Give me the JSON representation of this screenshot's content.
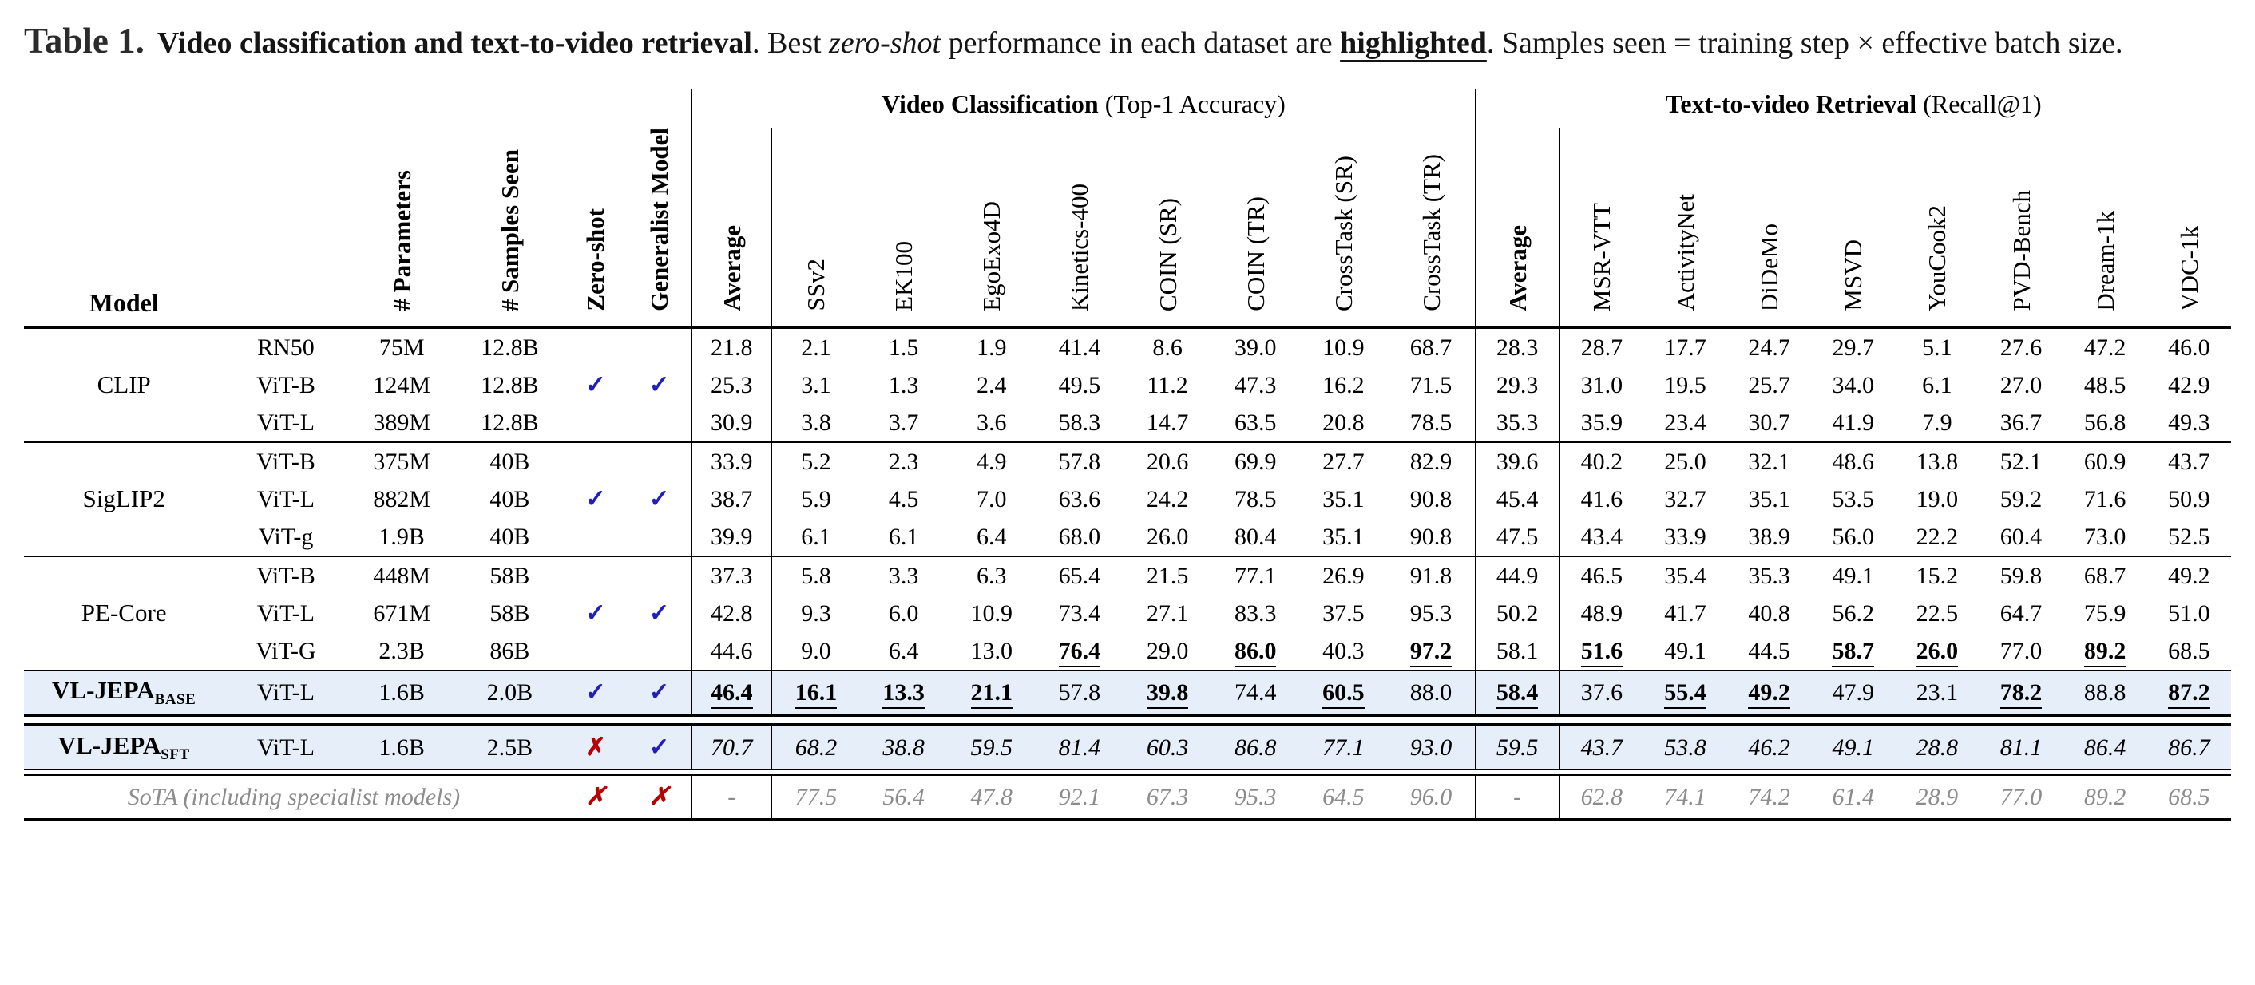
{
  "caption": {
    "label": "Table 1.",
    "bold_title": "Video classification and text-to-video retrieval",
    "after_title": ". Best ",
    "italic_word": "zero-shot",
    "mid": " performance in each dataset are ",
    "underlined_word": "highlighted",
    "tail": ". Samples seen = training step × effective batch size."
  },
  "icons": {
    "check": "✓",
    "cross": "✗"
  },
  "colors": {
    "check_blue": "#1f1fbf",
    "cross_red": "#b80000",
    "highlight_bg": "#e6eff9",
    "sota_gray": "#8c8c8c"
  },
  "table": {
    "group_headers": {
      "classification": {
        "bold": "Video Classification",
        "paren": " (Top-1 Accuracy)"
      },
      "retrieval": {
        "bold": "Text-to-video Retrieval",
        "paren": " (Recall@1)"
      }
    },
    "model_header": "Model",
    "meta_headers": [
      "# Parameters",
      "# Samples Seen",
      "Zero-shot",
      "Generalist Model"
    ],
    "classification_headers": [
      "Average",
      "SSv2",
      "EK100",
      "EgoExo4D",
      "Kinetics-400",
      "COIN (SR)",
      "COIN (TR)",
      "CrossTask (SR)",
      "CrossTask (TR)"
    ],
    "retrieval_headers": [
      "Average",
      "MSR-VTT",
      "ActivityNet",
      "DiDeMo",
      "MSVD",
      "YouCook2",
      "PVD-Bench",
      "Dream-1k",
      "VDC-1k"
    ],
    "rows": [
      {
        "model": "CLIP",
        "model_span": 3,
        "variant": "RN50",
        "params": "75M",
        "samples": "12.8B",
        "zero_shot": "",
        "generalist": "",
        "cls": [
          "21.8",
          "2.1",
          "1.5",
          "1.9",
          "41.4",
          "8.6",
          "39.0",
          "10.9",
          "68.7"
        ],
        "ret": [
          "28.3",
          "28.7",
          "17.7",
          "24.7",
          "29.7",
          "5.1",
          "27.6",
          "47.2",
          "46.0"
        ]
      },
      {
        "variant": "ViT-B",
        "params": "124M",
        "samples": "12.8B",
        "zero_shot": "check",
        "generalist": "check",
        "cls": [
          "25.3",
          "3.1",
          "1.3",
          "2.4",
          "49.5",
          "11.2",
          "47.3",
          "16.2",
          "71.5"
        ],
        "ret": [
          "29.3",
          "31.0",
          "19.5",
          "25.7",
          "34.0",
          "6.1",
          "27.0",
          "48.5",
          "42.9"
        ]
      },
      {
        "variant": "ViT-L",
        "params": "389M",
        "samples": "12.8B",
        "zero_shot": "",
        "generalist": "",
        "cls": [
          "30.9",
          "3.8",
          "3.7",
          "3.6",
          "58.3",
          "14.7",
          "63.5",
          "20.8",
          "78.5"
        ],
        "ret": [
          "35.3",
          "35.9",
          "23.4",
          "30.7",
          "41.9",
          "7.9",
          "36.7",
          "56.8",
          "49.3"
        ]
      },
      {
        "rule": "thin"
      },
      {
        "model": "SigLIP2",
        "model_span": 3,
        "variant": "ViT-B",
        "params": "375M",
        "samples": "40B",
        "zero_shot": "",
        "generalist": "",
        "cls": [
          "33.9",
          "5.2",
          "2.3",
          "4.9",
          "57.8",
          "20.6",
          "69.9",
          "27.7",
          "82.9"
        ],
        "ret": [
          "39.6",
          "40.2",
          "25.0",
          "32.1",
          "48.6",
          "13.8",
          "52.1",
          "60.9",
          "43.7"
        ]
      },
      {
        "variant": "ViT-L",
        "params": "882M",
        "samples": "40B",
        "zero_shot": "check",
        "generalist": "check",
        "cls": [
          "38.7",
          "5.9",
          "4.5",
          "7.0",
          "63.6",
          "24.2",
          "78.5",
          "35.1",
          "90.8"
        ],
        "ret": [
          "45.4",
          "41.6",
          "32.7",
          "35.1",
          "53.5",
          "19.0",
          "59.2",
          "71.6",
          "50.9"
        ]
      },
      {
        "variant": "ViT-g",
        "params": "1.9B",
        "samples": "40B",
        "zero_shot": "",
        "generalist": "",
        "cls": [
          "39.9",
          "6.1",
          "6.1",
          "6.4",
          "68.0",
          "26.0",
          "80.4",
          "35.1",
          "90.8"
        ],
        "ret": [
          "47.5",
          "43.4",
          "33.9",
          "38.9",
          "56.0",
          "22.2",
          "60.4",
          "73.0",
          "52.5"
        ]
      },
      {
        "rule": "thin"
      },
      {
        "model": "PE-Core",
        "model_span": 3,
        "variant": "ViT-B",
        "params": "448M",
        "samples": "58B",
        "zero_shot": "",
        "generalist": "",
        "cls": [
          "37.3",
          "5.8",
          "3.3",
          "6.3",
          "65.4",
          "21.5",
          "77.1",
          "26.9",
          "91.8"
        ],
        "ret": [
          "44.9",
          "46.5",
          "35.4",
          "35.3",
          "49.1",
          "15.2",
          "59.8",
          "68.7",
          "49.2"
        ]
      },
      {
        "variant": "ViT-L",
        "params": "671M",
        "samples": "58B",
        "zero_shot": "check",
        "generalist": "check",
        "cls": [
          "42.8",
          "9.3",
          "6.0",
          "10.9",
          "73.4",
          "27.1",
          "83.3",
          "37.5",
          "95.3"
        ],
        "ret": [
          "50.2",
          "48.9",
          "41.7",
          "40.8",
          "56.2",
          "22.5",
          "64.7",
          "75.9",
          "51.0"
        ]
      },
      {
        "variant": "ViT-G",
        "params": "2.3B",
        "samples": "86B",
        "zero_shot": "",
        "generalist": "",
        "cls": [
          "44.6",
          "9.0",
          "6.4",
          "13.0",
          "76.4",
          "29.0",
          "86.0",
          "40.3",
          "97.2"
        ],
        "cls_best": [
          4,
          6,
          8
        ],
        "ret": [
          "58.1",
          "51.6",
          "49.1",
          "44.5",
          "58.7",
          "26.0",
          "77.0",
          "89.2",
          "68.5"
        ],
        "ret_best": [
          1,
          4,
          5,
          7
        ]
      },
      {
        "rule": "thin"
      },
      {
        "model": "VL-JEPA",
        "model_sub": "BASE",
        "model_span": 1,
        "highlight": true,
        "variant": "ViT-L",
        "params": "1.6B",
        "samples": "2.0B",
        "zero_shot": "check",
        "generalist": "check",
        "cls": [
          "46.4",
          "16.1",
          "13.3",
          "21.1",
          "57.8",
          "39.8",
          "74.4",
          "60.5",
          "88.0"
        ],
        "cls_best": [
          0,
          1,
          2,
          3,
          5,
          7
        ],
        "ret": [
          "58.4",
          "37.6",
          "55.4",
          "49.2",
          "47.9",
          "23.1",
          "78.2",
          "88.8",
          "87.2"
        ],
        "ret_best": [
          0,
          2,
          3,
          6,
          8
        ]
      },
      {
        "rule": "double"
      },
      {
        "model": "VL-JEPA",
        "model_sub": "SFT",
        "model_span": 1,
        "highlight": true,
        "italic_values": true,
        "variant": "ViT-L",
        "params": "1.6B",
        "samples": "2.5B",
        "zero_shot": "cross",
        "generalist": "check",
        "cls": [
          "70.7",
          "68.2",
          "38.8",
          "59.5",
          "81.4",
          "60.3",
          "86.8",
          "77.1",
          "93.0"
        ],
        "ret": [
          "59.5",
          "43.7",
          "53.8",
          "46.2",
          "49.1",
          "28.8",
          "81.1",
          "86.4",
          "86.7"
        ]
      },
      {
        "rule": "double-thin"
      },
      {
        "sota_label": "SoTA (including specialist models)",
        "gray": true,
        "italic_values": true,
        "zero_shot": "cross",
        "generalist": "cross",
        "cls": [
          "-",
          "77.5",
          "56.4",
          "47.8",
          "92.1",
          "67.3",
          "95.3",
          "64.5",
          "96.0"
        ],
        "ret": [
          "-",
          "62.8",
          "74.1",
          "74.2",
          "61.4",
          "28.9",
          "77.0",
          "89.2",
          "68.5"
        ]
      },
      {
        "rule": "bottom"
      }
    ]
  }
}
